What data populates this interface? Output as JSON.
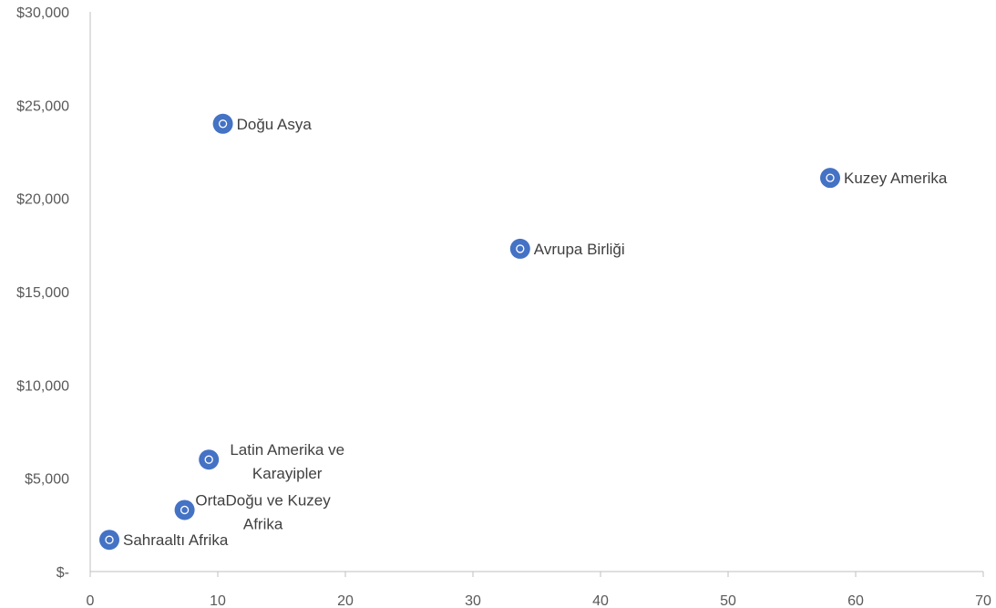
{
  "chart_data": {
    "type": "scatter",
    "title": "",
    "xlabel": "",
    "ylabel": "",
    "xlim": [
      0,
      70
    ],
    "ylim": [
      0,
      30000
    ],
    "x_ticks": [
      0,
      10,
      20,
      30,
      40,
      50,
      60,
      70
    ],
    "x_tick_labels": [
      "0",
      "10",
      "20",
      "30",
      "40",
      "50",
      "60",
      "70"
    ],
    "y_ticks": [
      0,
      5000,
      10000,
      15000,
      20000,
      25000,
      30000
    ],
    "y_tick_labels": [
      "$-",
      "$5,000",
      "$10,000",
      "$15,000",
      "$20,000",
      "$25,000",
      "$30,000"
    ],
    "grid": false,
    "legend": "none",
    "marker_color": "#4472C4",
    "points": [
      {
        "label": "Doğu Asya",
        "x": 10.4,
        "y": 24000,
        "label_pos": "right"
      },
      {
        "label": "Kuzey Amerika",
        "x": 58.0,
        "y": 21100,
        "label_pos": "right"
      },
      {
        "label": "Avrupa Birliği",
        "x": 33.7,
        "y": 17300,
        "label_pos": "right"
      },
      {
        "label": "Latin Amerika ve Karayipler",
        "label_lines": [
          "Latin Amerika ve",
          "Karayipler"
        ],
        "x": 9.3,
        "y": 6000,
        "label_pos": "right"
      },
      {
        "label": "OrtaDoğu ve Kuzey Afrika",
        "label_lines": [
          "OrtaDoğu ve Kuzey",
          "Afrika"
        ],
        "x": 7.4,
        "y": 3300,
        "label_pos": "right"
      },
      {
        "label": "Sahraaltı Afrika",
        "x": 1.5,
        "y": 1700,
        "label_pos": "right"
      }
    ]
  }
}
